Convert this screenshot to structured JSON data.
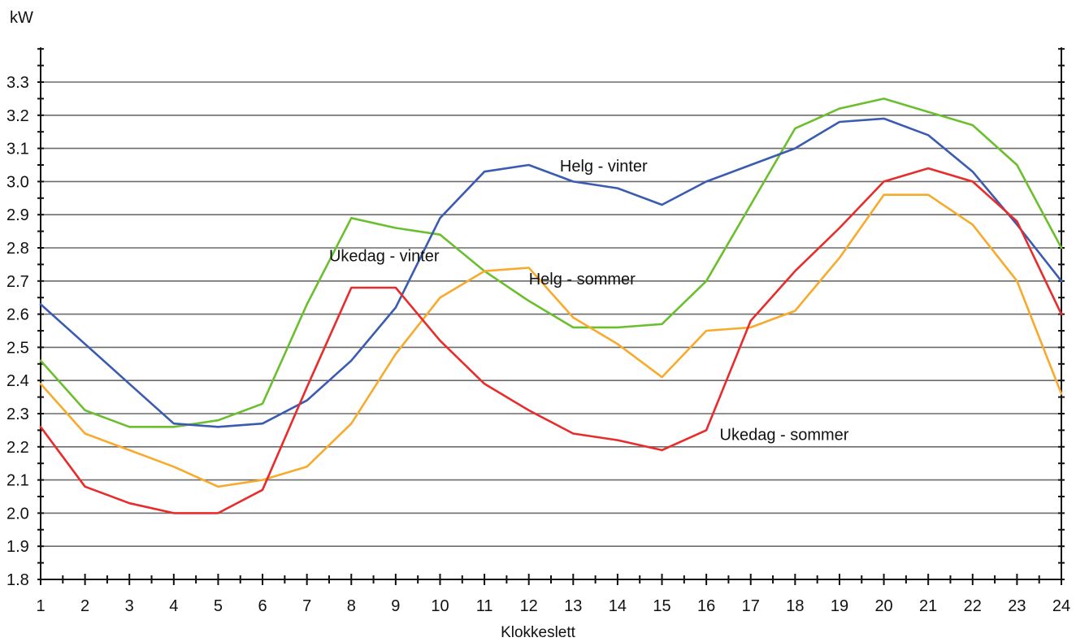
{
  "chart_data": {
    "type": "line",
    "title": "",
    "xlabel": "Klokkeslett",
    "ylabel": "kW",
    "xlim": [
      1,
      24
    ],
    "ylim": [
      1.8,
      3.3
    ],
    "grid": true,
    "x": [
      1,
      2,
      3,
      4,
      5,
      6,
      7,
      8,
      9,
      10,
      11,
      12,
      13,
      14,
      15,
      16,
      17,
      18,
      19,
      20,
      21,
      22,
      23,
      24
    ],
    "x_tick_labels": [
      "1",
      "2",
      "3",
      "4",
      "5",
      "6",
      "7",
      "8",
      "9",
      "10",
      "11",
      "12",
      "13",
      "14",
      "15",
      "16",
      "17",
      "18",
      "19",
      "20",
      "21",
      "22",
      "23",
      "24"
    ],
    "y_tick_labels": [
      "1.8",
      "1.9",
      "2.0",
      "2.1",
      "2.2",
      "2.3",
      "2.4",
      "2.5",
      "2.6",
      "2.7",
      "2.8",
      "2.9",
      "3.0",
      "3.1",
      "3.2",
      "3.3"
    ],
    "y_ticks": [
      1.8,
      1.9,
      2.0,
      2.1,
      2.2,
      2.3,
      2.4,
      2.5,
      2.6,
      2.7,
      2.8,
      2.9,
      3.0,
      3.1,
      3.2,
      3.3
    ],
    "series": [
      {
        "name": "Ukedag - vinter",
        "color": "#6bbf2e",
        "values": [
          2.46,
          2.31,
          2.26,
          2.26,
          2.28,
          2.33,
          2.63,
          2.89,
          2.86,
          2.84,
          2.73,
          2.64,
          2.56,
          2.56,
          2.57,
          2.7,
          2.93,
          3.16,
          3.22,
          3.25,
          3.21,
          3.17,
          3.05,
          2.8
        ],
        "label_at": [
          7.5,
          2.76
        ]
      },
      {
        "name": "Helg - vinter",
        "color": "#3a5bb0",
        "values": [
          2.63,
          2.51,
          2.39,
          2.27,
          2.26,
          2.27,
          2.34,
          2.46,
          2.62,
          2.89,
          3.03,
          3.05,
          3.0,
          2.98,
          2.93,
          3.0,
          3.05,
          3.1,
          3.18,
          3.19,
          3.14,
          3.03,
          2.87,
          2.7
        ],
        "label_at": [
          12.7,
          3.03
        ]
      },
      {
        "name": "Helg - sommer",
        "color": "#f7ab2c",
        "values": [
          2.39,
          2.24,
          2.19,
          2.14,
          2.08,
          2.1,
          2.14,
          2.27,
          2.48,
          2.65,
          2.73,
          2.74,
          2.59,
          2.51,
          2.41,
          2.55,
          2.56,
          2.61,
          2.77,
          2.96,
          2.96,
          2.87,
          2.7,
          2.36
        ],
        "label_at": [
          12.0,
          2.69
        ]
      },
      {
        "name": "Ukedag - sommer",
        "color": "#e82c2c",
        "values": [
          2.26,
          2.08,
          2.03,
          2.0,
          2.0,
          2.07,
          2.38,
          2.68,
          2.68,
          2.52,
          2.39,
          2.31,
          2.24,
          2.22,
          2.19,
          2.25,
          2.58,
          2.73,
          2.86,
          3.0,
          3.04,
          3.0,
          2.88,
          2.6
        ],
        "label_at": [
          16.3,
          2.22
        ]
      }
    ]
  }
}
